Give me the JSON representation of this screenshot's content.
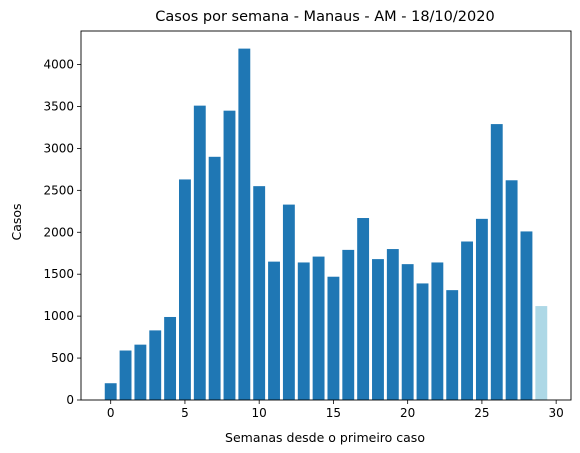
{
  "chart_data": {
    "type": "bar",
    "title": "Casos por semana - Manaus - AM - 18/10/2020",
    "xlabel": "Semanas desde o primeiro caso",
    "ylabel": "Casos",
    "x": [
      0,
      1,
      2,
      3,
      4,
      5,
      6,
      7,
      8,
      9,
      10,
      11,
      12,
      13,
      14,
      15,
      16,
      17,
      18,
      19,
      20,
      21,
      22,
      23,
      24,
      25,
      26,
      27,
      28,
      29
    ],
    "values": [
      200,
      590,
      660,
      830,
      990,
      2630,
      3510,
      2900,
      3450,
      4190,
      2550,
      1650,
      2330,
      1640,
      1710,
      1470,
      1790,
      2170,
      1680,
      1800,
      1620,
      1390,
      1640,
      1310,
      1890,
      2160,
      3290,
      2620,
      2010,
      1120
    ],
    "bar_colors": [
      "#1f77b4",
      "#1f77b4",
      "#1f77b4",
      "#1f77b4",
      "#1f77b4",
      "#1f77b4",
      "#1f77b4",
      "#1f77b4",
      "#1f77b4",
      "#1f77b4",
      "#1f77b4",
      "#1f77b4",
      "#1f77b4",
      "#1f77b4",
      "#1f77b4",
      "#1f77b4",
      "#1f77b4",
      "#1f77b4",
      "#1f77b4",
      "#1f77b4",
      "#1f77b4",
      "#1f77b4",
      "#1f77b4",
      "#1f77b4",
      "#1f77b4",
      "#1f77b4",
      "#1f77b4",
      "#1f77b4",
      "#1f77b4",
      "#add8e6"
    ],
    "xlim": [
      -2,
      31
    ],
    "ylim": [
      0,
      4400
    ],
    "xticks": [
      "0",
      "5",
      "10",
      "15",
      "20",
      "25",
      "30"
    ],
    "yticks": [
      "0",
      "500",
      "1000",
      "1500",
      "2000",
      "2500",
      "3000",
      "3500",
      "4000"
    ],
    "grid": false,
    "legend": "none"
  }
}
